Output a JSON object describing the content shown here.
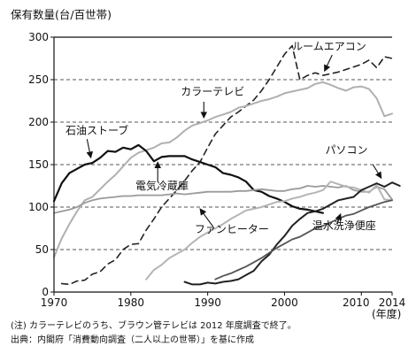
{
  "chart_data": {
    "type": "line",
    "ylabel": "保有数量(台/百世帯)",
    "xlabel": "(年度)",
    "xlim": [
      1970,
      2014
    ],
    "ylim": [
      0,
      300
    ],
    "xticks": [
      {
        "value": 1970,
        "label": "1970"
      },
      {
        "value": 1980,
        "label": "1980"
      },
      {
        "value": 1990,
        "label": "1990"
      },
      {
        "value": 2000,
        "label": "2000"
      },
      {
        "value": 2010,
        "label": "2010"
      },
      {
        "value": 2014,
        "label": "2014"
      }
    ],
    "yticks": [
      0,
      50,
      100,
      150,
      200,
      250,
      300
    ],
    "grid": {
      "y_dashed": true,
      "x": false
    },
    "series": [
      {
        "name": "ルームエアコン",
        "style": "dashed",
        "color": "#222222",
        "width": 1.6,
        "points": [
          [
            1971,
            10
          ],
          [
            1972,
            9
          ],
          [
            1973,
            13
          ],
          [
            1974,
            14
          ],
          [
            1975,
            21
          ],
          [
            1976,
            24
          ],
          [
            1977,
            33
          ],
          [
            1978,
            38
          ],
          [
            1979,
            50
          ],
          [
            1980,
            56
          ],
          [
            1981,
            57
          ],
          [
            1982,
            73
          ],
          [
            1983,
            86
          ],
          [
            1984,
            100
          ],
          [
            1985,
            110
          ],
          [
            1986,
            120
          ],
          [
            1987,
            131
          ],
          [
            1988,
            143
          ],
          [
            1989,
            153
          ],
          [
            1990,
            170
          ],
          [
            1991,
            186
          ],
          [
            1992,
            196
          ],
          [
            1993,
            206
          ],
          [
            1994,
            212
          ],
          [
            1995,
            219
          ],
          [
            1996,
            226
          ],
          [
            1997,
            237
          ],
          [
            1998,
            250
          ],
          [
            1999,
            265
          ],
          [
            2000,
            280
          ],
          [
            2001,
            290
          ],
          [
            2002,
            250
          ],
          [
            2003,
            255
          ],
          [
            2004,
            258
          ],
          [
            2005,
            255
          ],
          [
            2006,
            257
          ],
          [
            2007,
            259
          ],
          [
            2008,
            262
          ],
          [
            2009,
            265
          ],
          [
            2010,
            268
          ],
          [
            2011,
            273
          ],
          [
            2012,
            264
          ],
          [
            2013,
            277
          ],
          [
            2014,
            275
          ]
        ]
      },
      {
        "name": "カラーテレビ",
        "style": "solid",
        "color": "#b0b0b0",
        "width": 2,
        "points": [
          [
            1970,
            41
          ],
          [
            1971,
            63
          ],
          [
            1972,
            80
          ],
          [
            1973,
            95
          ],
          [
            1974,
            108
          ],
          [
            1975,
            112
          ],
          [
            1976,
            121
          ],
          [
            1977,
            130
          ],
          [
            1978,
            138
          ],
          [
            1979,
            148
          ],
          [
            1980,
            158
          ],
          [
            1981,
            164
          ],
          [
            1982,
            167
          ],
          [
            1983,
            170
          ],
          [
            1984,
            175
          ],
          [
            1985,
            176
          ],
          [
            1986,
            182
          ],
          [
            1987,
            190
          ],
          [
            1988,
            196
          ],
          [
            1989,
            199
          ],
          [
            1990,
            202
          ],
          [
            1991,
            206
          ],
          [
            1992,
            209
          ],
          [
            1993,
            212
          ],
          [
            1994,
            217
          ],
          [
            1995,
            219
          ],
          [
            1996,
            222
          ],
          [
            1997,
            225
          ],
          [
            1998,
            227
          ],
          [
            1999,
            230
          ],
          [
            2000,
            234
          ],
          [
            2001,
            236
          ],
          [
            2002,
            238
          ],
          [
            2003,
            240
          ],
          [
            2004,
            245
          ],
          [
            2005,
            247
          ],
          [
            2006,
            244
          ],
          [
            2007,
            240
          ],
          [
            2008,
            237
          ],
          [
            2009,
            241
          ],
          [
            2010,
            242
          ],
          [
            2011,
            239
          ],
          [
            2012,
            228
          ],
          [
            2013,
            207
          ],
          [
            2014,
            210
          ]
        ]
      },
      {
        "name": "石油ストーブ",
        "style": "solid",
        "color": "#111111",
        "width": 2.2,
        "points": [
          [
            1970,
            107
          ],
          [
            1971,
            128
          ],
          [
            1972,
            140
          ],
          [
            1973,
            145
          ],
          [
            1974,
            150
          ],
          [
            1975,
            152
          ],
          [
            1976,
            158
          ],
          [
            1977,
            166
          ],
          [
            1978,
            165
          ],
          [
            1979,
            170
          ],
          [
            1980,
            168
          ],
          [
            1981,
            173
          ],
          [
            1982,
            166
          ],
          [
            1983,
            154
          ],
          [
            1984,
            159
          ],
          [
            1985,
            160
          ],
          [
            1986,
            160
          ],
          [
            1987,
            160
          ],
          [
            1988,
            156
          ],
          [
            1989,
            153
          ],
          [
            1990,
            150
          ],
          [
            1991,
            147
          ],
          [
            1992,
            140
          ],
          [
            1993,
            138
          ],
          [
            1994,
            135
          ],
          [
            1995,
            130
          ],
          [
            1996,
            120
          ],
          [
            1997,
            118
          ],
          [
            1998,
            113
          ],
          [
            1999,
            110
          ],
          [
            2000,
            106
          ],
          [
            2001,
            101
          ],
          [
            2002,
            98
          ],
          [
            2003,
            97
          ],
          [
            2004,
            95
          ],
          [
            2005,
            93
          ]
        ]
      },
      {
        "name": "電気冷蔵庫",
        "style": "solid",
        "color": "#9a9a9a",
        "width": 1.8,
        "points": [
          [
            1970,
            93
          ],
          [
            1971,
            95
          ],
          [
            1972,
            97
          ],
          [
            1973,
            100
          ],
          [
            1974,
            105
          ],
          [
            1975,
            108
          ],
          [
            1976,
            110
          ],
          [
            1977,
            111
          ],
          [
            1978,
            112
          ],
          [
            1979,
            113
          ],
          [
            1980,
            113
          ],
          [
            1981,
            114
          ],
          [
            1982,
            114
          ],
          [
            1983,
            114
          ],
          [
            1984,
            114
          ],
          [
            1985,
            115
          ],
          [
            1986,
            116
          ],
          [
            1987,
            115
          ],
          [
            1988,
            116
          ],
          [
            1989,
            117
          ],
          [
            1990,
            118
          ],
          [
            1991,
            118
          ],
          [
            1992,
            118
          ],
          [
            1993,
            118
          ],
          [
            1994,
            119
          ],
          [
            1995,
            119
          ],
          [
            1996,
            120
          ],
          [
            1997,
            121
          ],
          [
            1998,
            120
          ],
          [
            1999,
            119
          ],
          [
            2000,
            119
          ],
          [
            2001,
            121
          ],
          [
            2002,
            122
          ],
          [
            2003,
            125
          ],
          [
            2004,
            124
          ],
          [
            2005,
            125
          ],
          [
            2006,
            124
          ],
          [
            2007,
            123
          ],
          [
            2008,
            125
          ],
          [
            2009,
            120
          ],
          [
            2010,
            118
          ],
          [
            2011,
            118
          ],
          [
            2012,
            124
          ],
          [
            2013,
            121
          ],
          [
            2014,
            109
          ]
        ]
      },
      {
        "name": "ファンヒーター",
        "style": "solid",
        "color": "#b5b5b5",
        "width": 2,
        "points": [
          [
            1982,
            15
          ],
          [
            1983,
            26
          ],
          [
            1984,
            32
          ],
          [
            1985,
            40
          ],
          [
            1986,
            45
          ],
          [
            1987,
            50
          ],
          [
            1988,
            58
          ],
          [
            1989,
            65
          ],
          [
            1990,
            70
          ],
          [
            1991,
            75
          ],
          [
            1992,
            80
          ],
          [
            1993,
            86
          ],
          [
            1994,
            91
          ],
          [
            1995,
            96
          ],
          [
            1996,
            98
          ],
          [
            1997,
            100
          ],
          [
            1998,
            103
          ],
          [
            1999,
            106
          ],
          [
            2000,
            107
          ],
          [
            2001,
            110
          ],
          [
            2002,
            112
          ],
          [
            2003,
            115
          ],
          [
            2004,
            117
          ],
          [
            2005,
            120
          ],
          [
            2006,
            130
          ],
          [
            2007,
            127
          ],
          [
            2008,
            124
          ],
          [
            2009,
            123
          ],
          [
            2010,
            120
          ],
          [
            2011,
            117
          ],
          [
            2012,
            126
          ],
          [
            2013,
            109
          ],
          [
            2014,
            108
          ]
        ]
      },
      {
        "name": "パソコン",
        "style": "solid",
        "color": "#222222",
        "width": 2,
        "points": [
          [
            1987,
            12
          ],
          [
            1988,
            9
          ],
          [
            1989,
            9
          ],
          [
            1990,
            11
          ],
          [
            1991,
            10
          ],
          [
            1992,
            12
          ],
          [
            1993,
            13
          ],
          [
            1994,
            15
          ],
          [
            1995,
            20
          ],
          [
            1996,
            25
          ],
          [
            1997,
            36
          ],
          [
            1998,
            44
          ],
          [
            1999,
            56
          ],
          [
            2000,
            66
          ],
          [
            2001,
            78
          ],
          [
            2002,
            86
          ],
          [
            2003,
            93
          ],
          [
            2004,
            95
          ],
          [
            2005,
            98
          ],
          [
            2006,
            103
          ],
          [
            2007,
            108
          ],
          [
            2008,
            110
          ],
          [
            2009,
            112
          ],
          [
            2010,
            120
          ],
          [
            2011,
            124
          ],
          [
            2012,
            128
          ],
          [
            2013,
            124
          ],
          [
            2014,
            129
          ],
          [
            2015,
            125
          ]
        ]
      },
      {
        "name": "温水洗浄便座",
        "style": "solid",
        "color": "#555555",
        "width": 1.8,
        "points": [
          [
            1991,
            15
          ],
          [
            1992,
            19
          ],
          [
            1993,
            22
          ],
          [
            1994,
            26
          ],
          [
            1995,
            30
          ],
          [
            1996,
            35
          ],
          [
            1997,
            40
          ],
          [
            1998,
            46
          ],
          [
            1999,
            52
          ],
          [
            2000,
            57
          ],
          [
            2001,
            62
          ],
          [
            2002,
            65
          ],
          [
            2003,
            70
          ],
          [
            2004,
            75
          ],
          [
            2005,
            78
          ],
          [
            2006,
            82
          ],
          [
            2007,
            86
          ],
          [
            2008,
            90
          ],
          [
            2009,
            92
          ],
          [
            2010,
            96
          ],
          [
            2011,
            100
          ],
          [
            2012,
            103
          ],
          [
            2013,
            106
          ],
          [
            2014,
            108
          ]
        ]
      }
    ],
    "labels": [
      {
        "series": "ルームエアコン",
        "text": "ルームエアコン",
        "tx": 2001,
        "ty": 285,
        "anchor": "start",
        "arrow": [
          [
            2006.2,
            279
          ],
          [
            2005.2,
            260
          ]
        ]
      },
      {
        "series": "カラーテレビ",
        "text": "カラーテレビ",
        "tx": 1986.5,
        "ty": 232,
        "anchor": "start",
        "arrow": [
          [
            1989.5,
            224
          ],
          [
            1989.5,
            205
          ]
        ]
      },
      {
        "series": "石油ストーブ",
        "text": "石油ストーブ",
        "tx": 1971.5,
        "ty": 186,
        "anchor": "start",
        "arrow": [
          [
            1974.3,
            180
          ],
          [
            1974.8,
            158
          ]
        ]
      },
      {
        "series": "電気冷蔵庫",
        "text": "電気冷蔵庫",
        "tx": 1980.6,
        "ty": 121,
        "anchor": "start",
        "arrow": [
          [
            1983.5,
            130
          ],
          [
            1983.5,
            153
          ]
        ]
      },
      {
        "series": "ファンヒーター",
        "text": "ファンヒーター",
        "tx": 1988.3,
        "ty": 70,
        "anchor": "start",
        "arrow": [
          [
            1990.7,
            77
          ],
          [
            1989,
            98
          ]
        ]
      },
      {
        "series": "パソコン",
        "text": "パソコン",
        "tx": 2005.3,
        "ty": 163,
        "anchor": "start",
        "arrow": [
          [
            2011.5,
            150
          ],
          [
            2012.6,
            134
          ]
        ]
      },
      {
        "series": "温水洗浄便座",
        "text": "温水洗浄便座",
        "tx": 2003.6,
        "ty": 74,
        "anchor": "start",
        "arrow": [
          [
            2006.8,
            80
          ],
          [
            2007.3,
            92
          ]
        ]
      }
    ]
  },
  "notes": {
    "line1": "(注) カラーテレビのうち、ブラウン管テレビは 2012 年度調査で終了。",
    "line2": "出典：内閣府「消費動向調査（二人以上の世帯）」を基に作成"
  }
}
